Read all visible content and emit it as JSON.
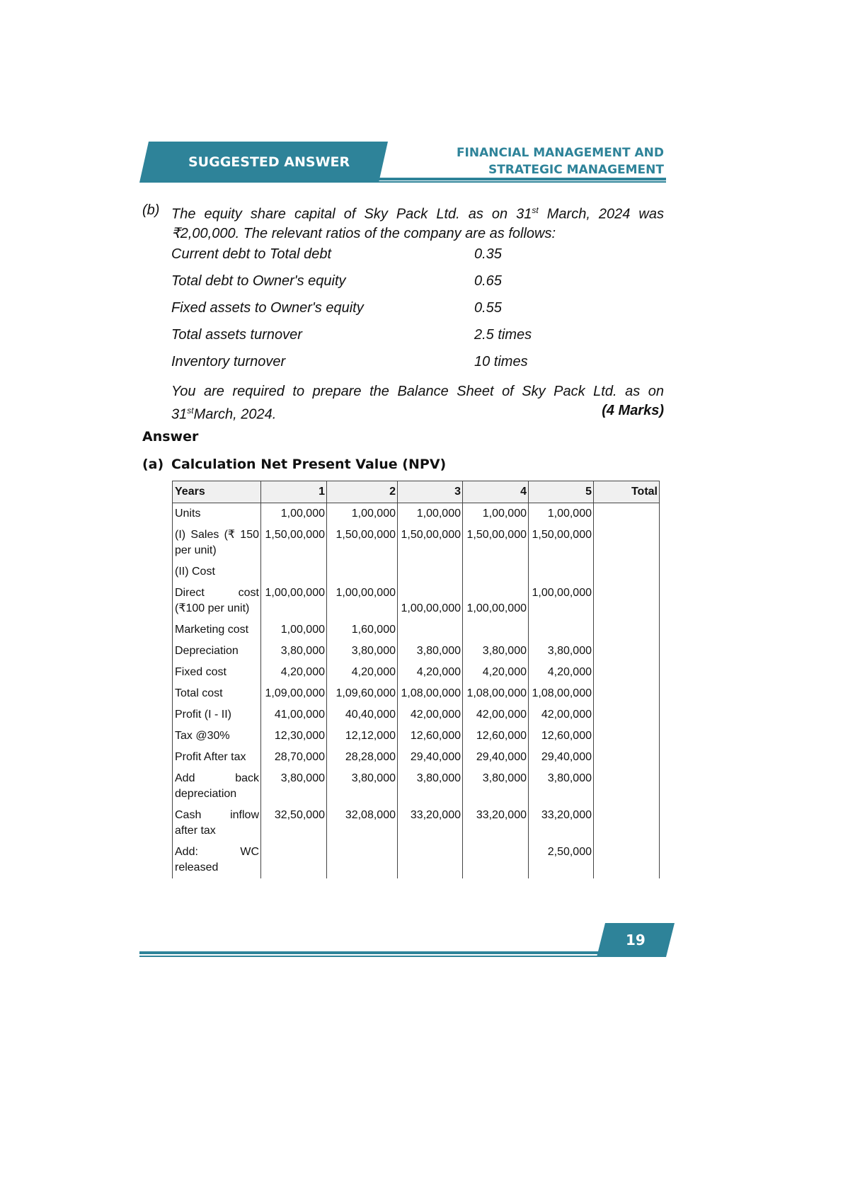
{
  "header": {
    "left": "SUGGESTED ANSWER",
    "right_line1": "FINANCIAL MANAGEMENT AND",
    "right_line2": "STRATEGIC MANAGEMENT"
  },
  "question": {
    "label": "(b)",
    "text_before_sup": "The equity share capital of Sky Pack Ltd. as on 31",
    "sup": "st",
    "text_after_sup": " March, 2024 was ₹2,00,000. The relevant ratios of the company are as follows:",
    "ratios": [
      [
        "Current debt to Total debt",
        "0.35"
      ],
      [
        "Total debt to Owner's equity",
        "0.65"
      ],
      [
        "Fixed assets to Owner's equity",
        "0.55"
      ],
      [
        "Total assets turnover",
        "2.5 times"
      ],
      [
        "Inventory turnover",
        "10 times"
      ]
    ],
    "instruction_line1": "You are required to prepare the Balance Sheet of Sky Pack Ltd. as on",
    "instruction_date": "31",
    "instruction_sup": "st",
    "instruction_after_sup": "March, 2024.",
    "marks": "(4 Marks)"
  },
  "answer": {
    "heading": "Answer",
    "section_label": "(a)",
    "section_title": "Calculation Net Present Value (NPV)"
  },
  "table": {
    "header": [
      "Years",
      "1",
      "2",
      "3",
      "4",
      "5",
      "Total"
    ],
    "rows": [
      [
        "Units",
        "1,00,000",
        "1,00,000",
        "1,00,000",
        "1,00,000",
        "1,00,000",
        null
      ],
      [
        "(I) Sales (₹ 150 per unit)",
        "1,50,00,000",
        "1,50,00,000",
        "1,50,00,000",
        "1,50,00,000",
        "1,50,00,000",
        null
      ],
      [
        "(II) Cost",
        null,
        null,
        null,
        null,
        null,
        null
      ],
      [
        "Direct cost (₹100 per unit)",
        "1,00,00,000",
        "1,00,00,000",
        "1,00,00,000",
        "1,00,00,000",
        "1,00,00,000",
        null
      ],
      [
        "Marketing cost",
        "1,00,000",
        "1,60,000",
        null,
        null,
        null,
        null
      ],
      [
        "Depreciation",
        "3,80,000",
        "3,80,000",
        "3,80,000",
        "3,80,000",
        "3,80,000",
        null
      ],
      [
        "Fixed cost",
        "4,20,000",
        "4,20,000",
        "4,20,000",
        "4,20,000",
        "4,20,000",
        null
      ],
      [
        "Total cost",
        "1,09,00,000",
        "1,09,60,000",
        "1,08,00,000",
        "1,08,00,000",
        "1,08,00,000",
        null
      ],
      [
        "Profit (I - II)",
        "41,00,000",
        "40,40,000",
        "42,00,000",
        "42,00,000",
        "42,00,000",
        null
      ],
      [
        "Tax @30%",
        "12,30,000",
        "12,12,000",
        "12,60,000",
        "12,60,000",
        "12,60,000",
        null
      ],
      [
        "Profit After tax",
        "28,70,000",
        "28,28,000",
        "29,40,000",
        "29,40,000",
        "29,40,000",
        null
      ],
      [
        "Add back depreciation",
        "3,80,000",
        "3,80,000",
        "3,80,000",
        "3,80,000",
        "3,80,000",
        null
      ],
      [
        "Cash inflow after tax",
        "32,50,000",
        "32,08,000",
        "33,20,000",
        "33,20,000",
        "33,20,000",
        null
      ],
      [
        "Add: WC released",
        null,
        null,
        null,
        null,
        "2,50,000",
        null
      ]
    ]
  },
  "footer": {
    "page_number": "19"
  }
}
